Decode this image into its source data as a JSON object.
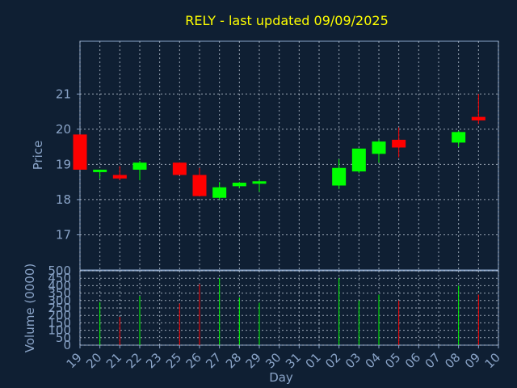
{
  "title": "RELY - last updated 09/09/2025",
  "colors": {
    "background": "#0f1f33",
    "up": "#00ff00",
    "down": "#ff0000",
    "text": "#8aa4c8",
    "title": "#ffff00"
  },
  "chart_data": {
    "type": "candlestick",
    "title": "RELY - last updated 09/09/2025",
    "xlabel": "Day",
    "ylabel_price": "Price",
    "ylabel_volume": "Volume (0000)",
    "x_tick_labels": [
      "19",
      "20",
      "21",
      "22",
      "23",
      "25",
      "26",
      "27",
      "28",
      "29",
      "30",
      "31",
      "01",
      "02",
      "03",
      "04",
      "05",
      "06",
      "07",
      "08",
      "09",
      "10"
    ],
    "price_ticks": [
      17,
      18,
      19,
      20,
      21
    ],
    "price_range": [
      16,
      22.5
    ],
    "volume_ticks": [
      0,
      50,
      100,
      150,
      200,
      250,
      300,
      350,
      400,
      450,
      500
    ],
    "volume_range": [
      0,
      500
    ],
    "grid": true,
    "candles": [
      {
        "x": "19",
        "open": 19.85,
        "high": 19.85,
        "low": 18.85,
        "close": 18.85,
        "volume": 0
      },
      {
        "x": "20",
        "open": 18.8,
        "high": 18.85,
        "low": 18.6,
        "close": 18.85,
        "volume": 290
      },
      {
        "x": "21",
        "open": 18.7,
        "high": 18.95,
        "low": 18.55,
        "close": 18.6,
        "volume": 190
      },
      {
        "x": "22",
        "open": 18.85,
        "high": 19.1,
        "low": 18.55,
        "close": 19.05,
        "volume": 330
      },
      {
        "x": "25",
        "open": 19.05,
        "high": 19.05,
        "low": 18.7,
        "close": 18.7,
        "volume": 280
      },
      {
        "x": "26",
        "open": 18.7,
        "high": 18.9,
        "low": 18.1,
        "close": 18.1,
        "volume": 410
      },
      {
        "x": "27",
        "open": 18.05,
        "high": 18.5,
        "low": 18.0,
        "close": 18.35,
        "volume": 450
      },
      {
        "x": "28",
        "open": 18.38,
        "high": 18.5,
        "low": 18.32,
        "close": 18.48,
        "volume": 320
      },
      {
        "x": "29",
        "open": 18.45,
        "high": 18.55,
        "low": 18.22,
        "close": 18.52,
        "volume": 285
      },
      {
        "x": "02",
        "open": 18.4,
        "high": 19.15,
        "low": 18.3,
        "close": 18.9,
        "volume": 450
      },
      {
        "x": "03",
        "open": 18.8,
        "high": 19.45,
        "low": 18.75,
        "close": 19.45,
        "volume": 300
      },
      {
        "x": "04",
        "open": 19.3,
        "high": 19.7,
        "low": 19.05,
        "close": 19.65,
        "volume": 340
      },
      {
        "x": "05",
        "open": 19.7,
        "high": 20.05,
        "low": 19.2,
        "close": 19.48,
        "volume": 300
      },
      {
        "x": "08",
        "open": 19.62,
        "high": 19.95,
        "low": 19.5,
        "close": 19.92,
        "volume": 400
      },
      {
        "x": "09",
        "open": 20.35,
        "high": 21.0,
        "low": 20.15,
        "close": 20.25,
        "volume": 340
      }
    ]
  }
}
